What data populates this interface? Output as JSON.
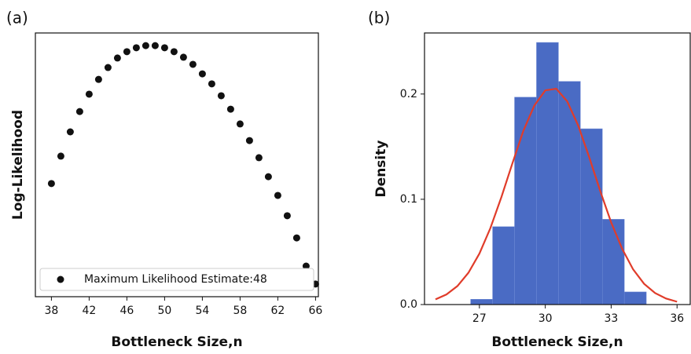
{
  "chart_data": [
    {
      "type": "scatter",
      "panel_label": "(a)",
      "xlabel": "Bottleneck Size,n",
      "ylabel": "Log-Likelihood",
      "x": [
        38,
        39,
        40,
        41,
        42,
        43,
        44,
        45,
        46,
        47,
        48,
        49,
        50,
        51,
        52,
        53,
        54,
        55,
        56,
        57,
        58,
        59,
        60,
        61,
        62,
        63,
        64,
        65,
        66
      ],
      "series": [
        {
          "name": "Maximum Likelihood Estimate:48",
          "color": "#111111",
          "values": [
            42.9,
            53.3,
            62.5,
            70.2,
            76.8,
            82.4,
            86.9,
            90.5,
            92.9,
            94.4,
            95.2,
            95.2,
            94.4,
            92.9,
            90.8,
            88.1,
            84.5,
            80.7,
            76.2,
            71.1,
            65.5,
            59.2,
            52.7,
            45.5,
            38.4,
            30.7,
            22.3,
            11.6,
            4.8
          ]
        }
      ],
      "xlim": [
        36.3,
        66.3
      ],
      "xticks": [
        38,
        42,
        46,
        50,
        54,
        58,
        62,
        66
      ],
      "ylim": [
        0,
        100
      ],
      "legend": "lower left"
    },
    {
      "type": "histogram",
      "panel_label": "(b)",
      "xlabel": "Bottleneck Size,n",
      "ylabel": "Density",
      "bins": [
        26.6,
        27.6,
        28.6,
        29.6,
        30.6,
        31.6,
        32.6,
        33.6,
        34.6
      ],
      "values": [
        0.005,
        0.074,
        0.197,
        0.249,
        0.212,
        0.167,
        0.081,
        0.012
      ],
      "color": "#4a6bc4",
      "curve": {
        "color": "#e03c2a",
        "x": [
          25,
          25.5,
          26,
          26.5,
          27,
          27.5,
          28,
          28.5,
          29,
          29.5,
          30,
          30.5,
          31,
          31.5,
          32,
          32.5,
          33,
          33.5,
          34,
          34.5,
          35,
          35.5,
          36
        ],
        "values": [
          0.0049,
          0.0096,
          0.0176,
          0.0302,
          0.0484,
          0.0726,
          0.102,
          0.134,
          0.165,
          0.189,
          0.2035,
          0.205,
          0.193,
          0.17,
          0.14,
          0.108,
          0.078,
          0.053,
          0.0334,
          0.0197,
          0.0109,
          0.0057,
          0.0027
        ]
      },
      "xlim": [
        24.5,
        36.6
      ],
      "xticks": [
        27,
        30,
        33,
        36
      ],
      "ylim": [
        0,
        0.258
      ],
      "yticks": [
        {
          "value": 0,
          "label": "0.0"
        },
        0.1,
        0.2
      ]
    }
  ]
}
